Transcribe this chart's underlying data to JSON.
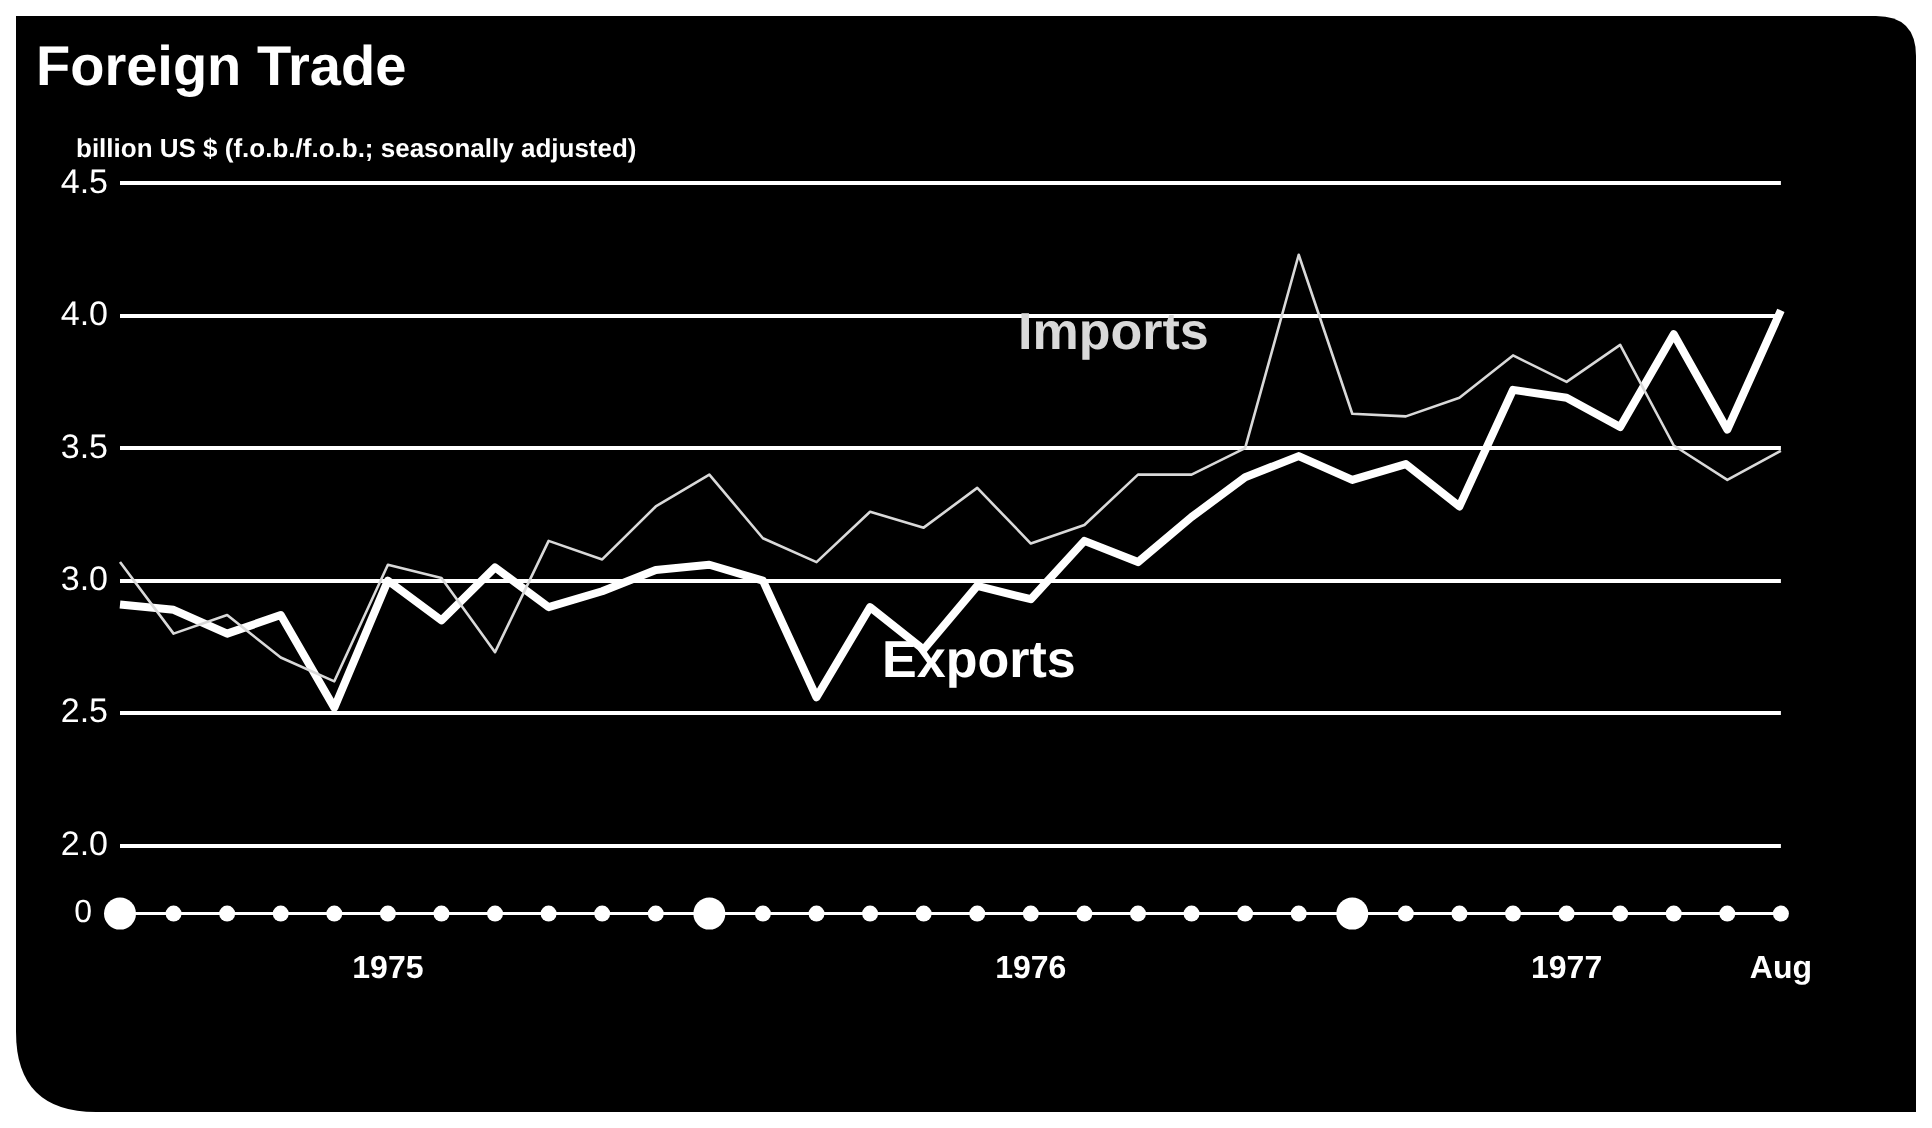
{
  "chart_data": {
    "type": "line",
    "title": "Foreign Trade",
    "ylabel": "billion US $ (f.o.b./f.o.b.; seasonally adjusted)",
    "categories": [
      null,
      null,
      null,
      null,
      null,
      "1975",
      null,
      null,
      null,
      null,
      null,
      null,
      null,
      null,
      null,
      null,
      null,
      "1976",
      null,
      null,
      null,
      null,
      null,
      null,
      null,
      null,
      null,
      "1977",
      null,
      null,
      null,
      "Aug"
    ],
    "series": [
      {
        "name": "Imports",
        "color": "#d9d9d9",
        "values": [
          3.07,
          2.8,
          2.87,
          2.71,
          2.62,
          3.06,
          3.01,
          2.73,
          3.15,
          3.08,
          3.28,
          3.4,
          3.16,
          3.07,
          3.26,
          3.2,
          3.35,
          3.14,
          3.21,
          3.4,
          3.4,
          3.5,
          4.23,
          3.63,
          3.62,
          3.69,
          3.85,
          3.75,
          3.89,
          3.51,
          3.38,
          3.49
        ]
      },
      {
        "name": "Exports",
        "color": "#ffffff",
        "values": [
          2.91,
          2.89,
          2.8,
          2.87,
          2.52,
          3.0,
          2.85,
          3.05,
          2.9,
          2.96,
          3.04,
          3.06,
          3.0,
          2.56,
          2.9,
          2.74,
          2.98,
          2.93,
          3.15,
          3.07,
          3.24,
          3.39,
          3.47,
          3.38,
          3.44,
          3.28,
          3.72,
          3.69,
          3.58,
          3.93,
          3.57,
          4.02
        ]
      }
    ],
    "ylim": [
      2.0,
      4.5
    ],
    "yticks": [
      {
        "value": 2.0,
        "label": "2.0"
      },
      {
        "value": 2.5,
        "label": "2.5"
      },
      {
        "value": 3.0,
        "label": "3.0"
      },
      {
        "value": 3.5,
        "label": "3.5"
      },
      {
        "value": 4.0,
        "label": "4.0"
      },
      {
        "value": 4.5,
        "label": "4.5"
      }
    ],
    "annotations": [
      "0"
    ],
    "grid": "y",
    "legend": false,
    "marker": "none",
    "line_style": "solid"
  }
}
